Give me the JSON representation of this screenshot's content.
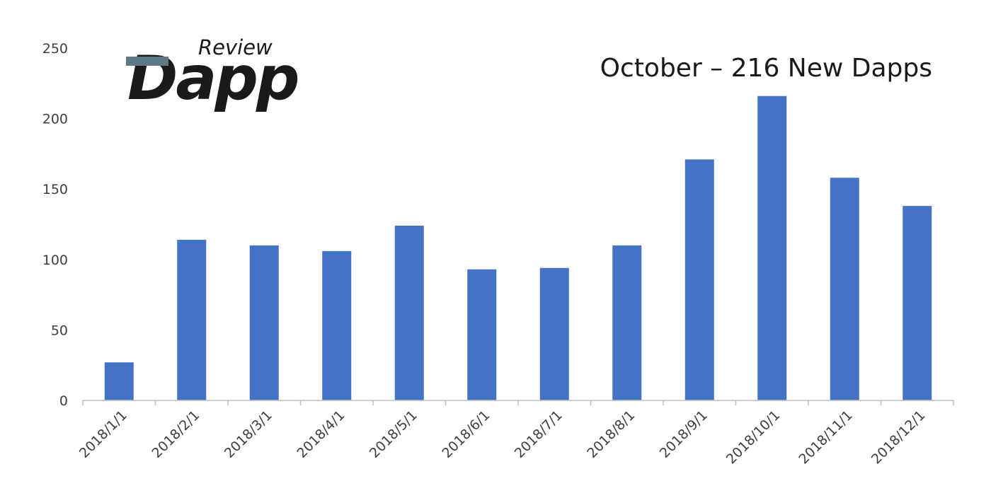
{
  "logo": {
    "text_small": "Review",
    "text_large": "Dapp"
  },
  "chart_data": {
    "type": "bar",
    "title": "",
    "annotation": "October – 216 New Dapps",
    "xlabel": "",
    "ylabel": "",
    "categories": [
      "2018/1/1",
      "2018/2/1",
      "2018/3/1",
      "2018/4/1",
      "2018/5/1",
      "2018/6/1",
      "2018/7/1",
      "2018/8/1",
      "2018/9/1",
      "2018/10/1",
      "2018/11/1",
      "2018/12/1"
    ],
    "values": [
      27,
      114,
      110,
      106,
      124,
      93,
      94,
      110,
      171,
      216,
      158,
      138
    ],
    "ylim": [
      0,
      250
    ],
    "yticks": [
      "0",
      "50",
      "100",
      "150",
      "200",
      "250"
    ],
    "grid": false,
    "bar_color": "#4472c4",
    "axis_color": "#bfbfbf"
  }
}
